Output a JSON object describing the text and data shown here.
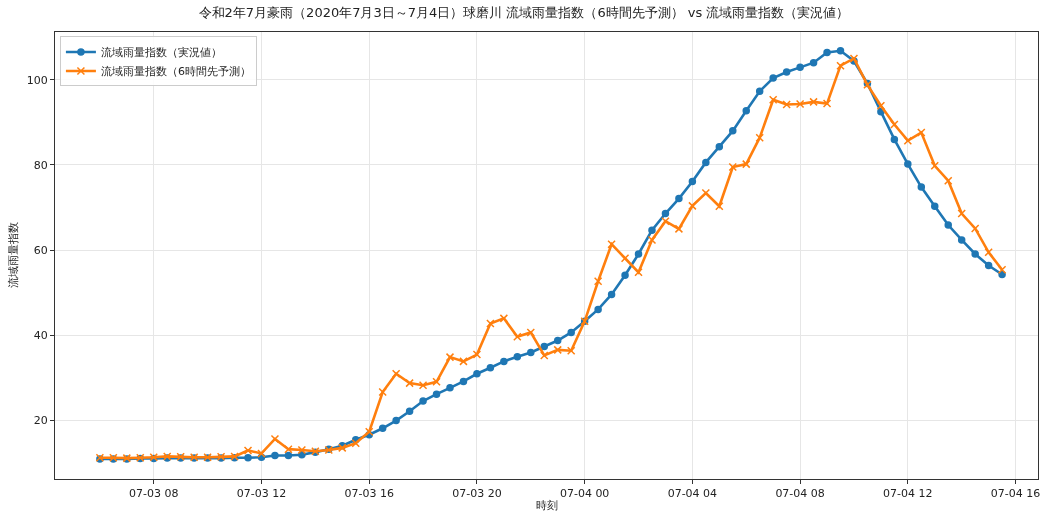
{
  "chart_data": {
    "type": "line",
    "title": "令和2年7月豪雨（2020年7月3日～7月4日）球磨川 流域雨量指数（6時間先予測） vs 流域雨量指数（実況値）",
    "xlabel": "時刻",
    "ylabel": "流域雨量指数",
    "x": [
      "2020-07-03T06:00",
      "2020-07-03T06:30",
      "2020-07-03T07:00",
      "2020-07-03T07:30",
      "2020-07-03T08:00",
      "2020-07-03T08:30",
      "2020-07-03T09:00",
      "2020-07-03T09:30",
      "2020-07-03T10:00",
      "2020-07-03T10:30",
      "2020-07-03T11:00",
      "2020-07-03T11:30",
      "2020-07-03T12:00",
      "2020-07-03T12:30",
      "2020-07-03T13:00",
      "2020-07-03T13:30",
      "2020-07-03T14:00",
      "2020-07-03T14:30",
      "2020-07-03T15:00",
      "2020-07-03T15:30",
      "2020-07-03T16:00",
      "2020-07-03T16:30",
      "2020-07-03T17:00",
      "2020-07-03T17:30",
      "2020-07-03T18:00",
      "2020-07-03T18:30",
      "2020-07-03T19:00",
      "2020-07-03T19:30",
      "2020-07-03T20:00",
      "2020-07-03T20:30",
      "2020-07-03T21:00",
      "2020-07-03T21:30",
      "2020-07-03T22:00",
      "2020-07-03T22:30",
      "2020-07-03T23:00",
      "2020-07-03T23:30",
      "2020-07-04T00:00",
      "2020-07-04T00:30",
      "2020-07-04T01:00",
      "2020-07-04T01:30",
      "2020-07-04T02:00",
      "2020-07-04T02:30",
      "2020-07-04T03:00",
      "2020-07-04T03:30",
      "2020-07-04T04:00",
      "2020-07-04T04:30",
      "2020-07-04T05:00",
      "2020-07-04T05:30",
      "2020-07-04T06:00",
      "2020-07-04T06:30",
      "2020-07-04T07:00",
      "2020-07-04T07:30",
      "2020-07-04T08:00",
      "2020-07-04T08:30",
      "2020-07-04T09:00",
      "2020-07-04T09:30",
      "2020-07-04T10:00",
      "2020-07-04T10:30",
      "2020-07-04T11:00",
      "2020-07-04T11:30",
      "2020-07-04T12:00",
      "2020-07-04T12:30",
      "2020-07-04T13:00",
      "2020-07-04T13:30",
      "2020-07-04T14:00",
      "2020-07-04T14:30",
      "2020-07-04T15:00",
      "2020-07-04T15:30"
    ],
    "series": [
      {
        "name": "流域雨量指数（実況値）",
        "color": "#1f77b4",
        "marker": "circle",
        "values": [
          11.0,
          11.0,
          11.0,
          11.1,
          11.1,
          11.2,
          11.2,
          11.2,
          11.2,
          11.2,
          11.3,
          11.3,
          11.4,
          11.8,
          11.8,
          12.0,
          12.6,
          13.3,
          14.1,
          15.5,
          16.7,
          18.2,
          20.0,
          22.2,
          24.6,
          26.2,
          27.7,
          29.2,
          31.0,
          32.4,
          33.9,
          35.0,
          36.0,
          37.4,
          38.8,
          40.7,
          43.3,
          46.1,
          49.6,
          54.1,
          59.1,
          64.7,
          68.6,
          72.1,
          76.1,
          80.6,
          84.3,
          88.0,
          92.7,
          97.3,
          100.4,
          101.8,
          102.9,
          104.0,
          106.4,
          106.8,
          104.4,
          99.1,
          92.5,
          86.0,
          80.2,
          74.8,
          70.3,
          65.9,
          62.4,
          59.1,
          56.4,
          54.3
        ]
      },
      {
        "name": "流域雨量指数（6時間先予測）",
        "color": "#ff7f0e",
        "marker": "cross",
        "values": [
          11.3,
          11.3,
          11.2,
          11.3,
          11.4,
          11.6,
          11.5,
          11.4,
          11.4,
          11.5,
          11.6,
          13.0,
          12.3,
          15.7,
          13.3,
          13.1,
          12.8,
          13.1,
          13.6,
          14.7,
          17.4,
          26.7,
          31.0,
          28.8,
          28.3,
          29.1,
          34.9,
          33.9,
          35.5,
          42.8,
          44.0,
          39.7,
          40.7,
          35.3,
          36.6,
          36.4,
          43.3,
          52.7,
          61.4,
          58.1,
          54.8,
          62.4,
          66.8,
          65.0,
          70.4,
          73.4,
          70.3,
          79.5,
          80.2,
          86.4,
          95.3,
          94.2,
          94.3,
          94.8,
          94.4,
          103.3,
          105.0,
          98.8,
          93.9,
          89.5,
          85.7,
          87.6,
          79.8,
          76.3,
          68.6,
          65.1,
          59.5,
          55.4
        ]
      }
    ],
    "xlim": [
      "2020-07-03T04:20",
      "2020-07-04T16:50"
    ],
    "xticks": [
      {
        "value": "2020-07-03T08:00",
        "label": "07-03 08"
      },
      {
        "value": "2020-07-03T12:00",
        "label": "07-03 12"
      },
      {
        "value": "2020-07-03T16:00",
        "label": "07-03 16"
      },
      {
        "value": "2020-07-03T20:00",
        "label": "07-03 20"
      },
      {
        "value": "2020-07-04T00:00",
        "label": "07-04 00"
      },
      {
        "value": "2020-07-04T04:00",
        "label": "07-04 04"
      },
      {
        "value": "2020-07-04T08:00",
        "label": "07-04 08"
      },
      {
        "value": "2020-07-04T12:00",
        "label": "07-04 12"
      },
      {
        "value": "2020-07-04T16:00",
        "label": "07-04 16"
      }
    ],
    "ylim": [
      6.3,
      111.2
    ],
    "yticks": [
      20,
      40,
      60,
      80,
      100
    ],
    "grid": true,
    "legend": "top left",
    "line_style": "solid"
  }
}
